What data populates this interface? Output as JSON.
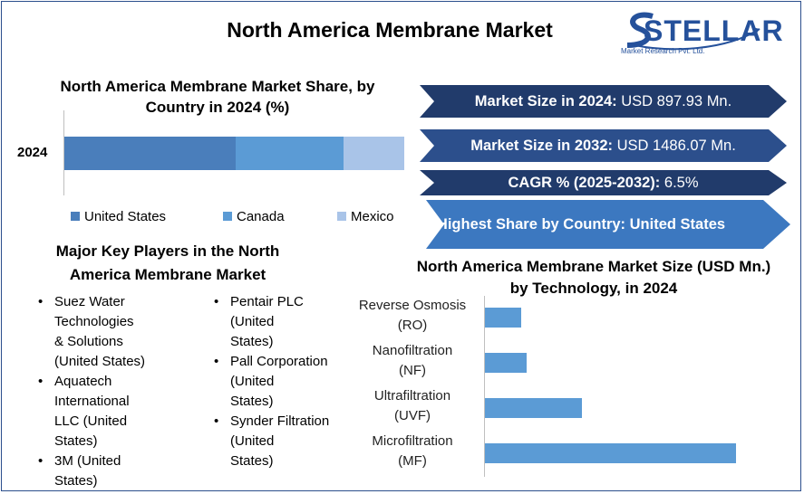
{
  "header": {
    "title": "North America Membrane Market"
  },
  "logo": {
    "brand": "STELLAR",
    "tagline": "Market Research Pvt. Ltd."
  },
  "share_chart": {
    "title": "North America Membrane Market Share, by Country in 2024 (%)"
  },
  "stats": [
    {
      "label": "Market Size in 2024:",
      "value": "USD 897.93 Mn."
    },
    {
      "label": "Market Size in 2032:",
      "value": "USD 1486.07 Mn."
    },
    {
      "label": "CAGR % (2025-2032):",
      "value": "6.5%"
    },
    {
      "label": "Highest Share by Country: United States",
      "value": ""
    }
  ],
  "players": {
    "title": "Major Key Players in the North America Membrane Market",
    "bullet": "•",
    "col1": [
      [
        "Suez Water",
        "Technologies",
        "& Solutions",
        "(United States)"
      ],
      [
        "Aquatech",
        "International",
        "LLC (United",
        "States)"
      ],
      [
        "3M (United",
        "States)"
      ]
    ],
    "col2": [
      [
        "Pentair PLC",
        "(United",
        "States)"
      ],
      [
        "Pall Corporation",
        "(United",
        "States)"
      ],
      [
        "Synder Filtration",
        "(United",
        "States)"
      ]
    ]
  },
  "tech_chart": {
    "title": "North America Membrane Market Size (USD Mn.) by Technology, in 2024"
  },
  "chart_data": [
    {
      "type": "bar",
      "orientation": "horizontal-stacked",
      "title": "North America Membrane Market Share, by Country in 2024 (%)",
      "categories": [
        "2024"
      ],
      "series": [
        {
          "name": "United States",
          "values": [
            50.5
          ],
          "color": "#4a7ebb"
        },
        {
          "name": "Canada",
          "values": [
            31.5
          ],
          "color": "#5b9bd5"
        },
        {
          "name": "Mexico",
          "values": [
            18
          ],
          "color": "#a9c4e8"
        }
      ],
      "xlim": [
        0,
        100
      ],
      "legend": "bottom",
      "grid": false
    },
    {
      "type": "bar",
      "orientation": "horizontal",
      "title": "North America Membrane Market Size (USD Mn.) by Technology, in 2024",
      "categories": [
        [
          "Reverse Osmosis",
          "(RO)"
        ],
        [
          "Nanofiltration",
          "(NF)"
        ],
        [
          "Ultrafiltration",
          "(UVF)"
        ],
        [
          "Microfiltration",
          "(MF)"
        ]
      ],
      "values": [
        40,
        46,
        107,
        277
      ],
      "xlim": [
        0,
        300
      ],
      "bar_color": "#5b9bd5",
      "grid": false
    }
  ]
}
